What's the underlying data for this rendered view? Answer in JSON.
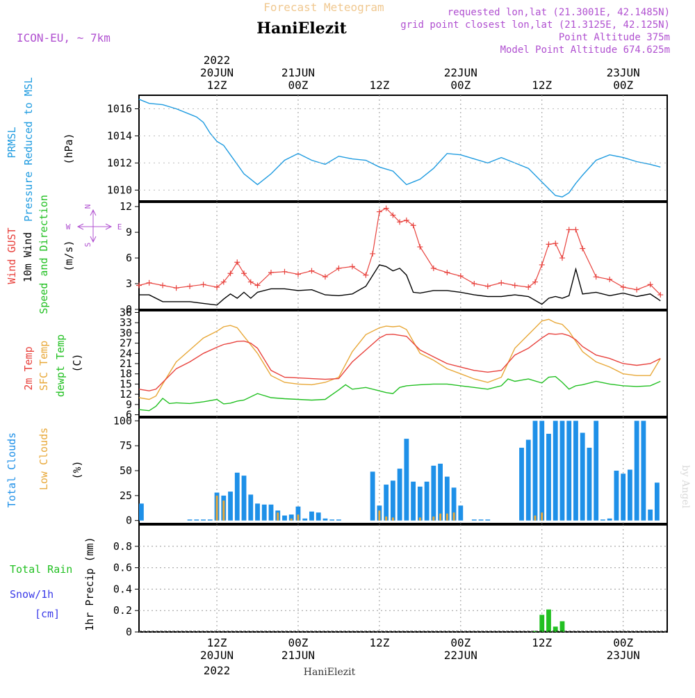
{
  "header": {
    "product": "Forecast Meteogram",
    "station": "HaniElezit",
    "model": "ICON-EU, ~ 7km",
    "requested": "requested lon,lat (21.3001E, 42.1485N)",
    "closest": "grid point closest lon,lat (21.3125E, 42.125N)",
    "point_alt": "Point Altitude 375m",
    "model_alt": "Model Point Altitude 674.625m",
    "credit": "by Angel",
    "footer_station": "HaniElezit",
    "year": "2022"
  },
  "colors": {
    "pressure": "#1e9be0",
    "gust": "#e8413c",
    "wind": "#000000",
    "dir": "#22c022",
    "t2m": "#e8413c",
    "sfc": "#e8a838",
    "dewpt": "#22c022",
    "total_clouds": "#1e90e8",
    "low_clouds": "#e8a838",
    "rain": "#22c022",
    "snow": "#3a3ae8",
    "header_gold": "#f0c890",
    "header_purple": "#b050d0"
  },
  "time_axis": {
    "top_ticks": [
      {
        "hour": 12,
        "l1": "20JUN",
        "l2": "12Z"
      },
      {
        "hour": 24,
        "l1": "21JUN",
        "l2": "00Z"
      },
      {
        "hour": 36,
        "l1": "",
        "l2": "12Z"
      },
      {
        "hour": 48,
        "l1": "22JUN",
        "l2": "00Z"
      },
      {
        "hour": 60,
        "l1": "",
        "l2": "12Z"
      },
      {
        "hour": 72,
        "l1": "23JUN",
        "l2": "00Z"
      }
    ],
    "bottom_ticks": [
      {
        "hour": 12,
        "l1": "12Z",
        "l2": "20JUN"
      },
      {
        "hour": 24,
        "l1": "00Z",
        "l2": "21JUN"
      },
      {
        "hour": 36,
        "l1": "12Z",
        "l2": ""
      },
      {
        "hour": 48,
        "l1": "00Z",
        "l2": "22JUN"
      },
      {
        "hour": 60,
        "l1": "12Z",
        "l2": ""
      },
      {
        "hour": 72,
        "l1": "00Z",
        "l2": "23JUN"
      }
    ]
  },
  "panels": {
    "pressure": {
      "label1": "PRMSL",
      "label2": "Pressure Reduced to MSL",
      "unit": "(hPa)",
      "ticks": [
        1010,
        1012,
        1014,
        1016
      ]
    },
    "wind": {
      "label_gust": "Wind GUST",
      "label_wind": "10m Wind",
      "label_dir": "Speed and Direction",
      "unit": "(m/s)",
      "ticks": [
        0,
        3,
        6,
        9,
        12
      ],
      "compass": {
        "n": "N",
        "s": "S",
        "w": "W",
        "e": "E"
      }
    },
    "temp": {
      "label_t2m": "2m Temp",
      "label_sfc": "SFC Temp",
      "label_dew": "dewpt Temp",
      "unit": "(C)",
      "ticks": [
        6,
        9,
        12,
        15,
        18,
        21,
        24,
        27,
        30,
        33,
        36
      ]
    },
    "clouds": {
      "label_total": "Total Clouds",
      "label_low": "Low Clouds",
      "unit": "(%)",
      "ticks": [
        0,
        25,
        50,
        75,
        100
      ]
    },
    "precip": {
      "label_rain": "Total Rain",
      "label_snow": "Snow/1h",
      "label_cm": "[cm]",
      "label_axis": "1hr Precip (mm)",
      "ticks": [
        "0",
        "0.2",
        "0.4",
        "0.6",
        "0.8"
      ]
    }
  },
  "chart_data": [
    {
      "type": "line",
      "title": "PRMSL",
      "ylabel": "(hPa)",
      "ylim": [
        1009.2,
        1017.0
      ],
      "x_unit": "hours since 20JUN 00Z",
      "series": [
        {
          "name": "PRMSL",
          "x": [
            0.5,
            2,
            4,
            6,
            8,
            9,
            10,
            11,
            12,
            13,
            14,
            15,
            16,
            17,
            18,
            20,
            22,
            24,
            26,
            28,
            30,
            32,
            34,
            36,
            38,
            39,
            40,
            41,
            42,
            44,
            46,
            48,
            50,
            52,
            54,
            56,
            58,
            60,
            61,
            62,
            63,
            64,
            65,
            66,
            68,
            70,
            72,
            74,
            76,
            77.5
          ],
          "values": [
            1016.7,
            1016.4,
            1016.3,
            1016.0,
            1015.6,
            1015.4,
            1015.0,
            1014.2,
            1013.6,
            1013.3,
            1012.6,
            1011.9,
            1011.2,
            1010.8,
            1010.4,
            1011.2,
            1012.2,
            1012.7,
            1012.2,
            1011.9,
            1012.5,
            1012.3,
            1012.2,
            1011.7,
            1011.4,
            1010.9,
            1010.4,
            1010.6,
            1010.8,
            1011.6,
            1012.7,
            1012.6,
            1012.3,
            1012.0,
            1012.4,
            1012.0,
            1011.6,
            1010.6,
            1010.1,
            1009.6,
            1009.5,
            1009.8,
            1010.5,
            1011.1,
            1012.2,
            1012.6,
            1012.4,
            1012.1,
            1011.9,
            1011.7
          ]
        }
      ]
    },
    {
      "type": "line",
      "title": "Wind",
      "ylabel": "(m/s)",
      "ylim": [
        0,
        12.5
      ],
      "series": [
        {
          "name": "Wind GUST",
          "x": [
            0.5,
            2,
            4,
            6,
            8,
            10,
            12,
            13,
            14,
            15,
            16,
            17,
            18,
            20,
            22,
            24,
            26,
            28,
            30,
            32,
            34,
            35,
            36,
            37,
            38,
            39,
            40,
            41,
            42,
            44,
            46,
            48,
            50,
            52,
            54,
            56,
            58,
            59,
            60,
            61,
            62,
            63,
            64,
            65,
            66,
            68,
            70,
            72,
            74,
            76,
            77.5
          ],
          "values": [
            2.8,
            3.1,
            2.8,
            2.5,
            2.7,
            2.9,
            2.6,
            3.2,
            4.2,
            5.5,
            4.2,
            3.2,
            2.8,
            4.3,
            4.4,
            4.1,
            4.5,
            3.8,
            4.8,
            5.0,
            4.0,
            6.5,
            11.4,
            11.8,
            11.0,
            10.2,
            10.4,
            9.8,
            7.3,
            4.8,
            4.3,
            3.9,
            3.0,
            2.7,
            3.1,
            2.8,
            2.6,
            3.2,
            5.2,
            7.6,
            7.7,
            6.0,
            9.3,
            9.3,
            7.1,
            3.8,
            3.5,
            2.6,
            2.3,
            2.9,
            1.7
          ]
        },
        {
          "name": "10m Wind",
          "x": [
            0.5,
            2,
            4,
            6,
            8,
            10,
            12,
            13,
            14,
            15,
            16,
            17,
            18,
            20,
            22,
            24,
            26,
            28,
            30,
            32,
            34,
            36,
            37,
            38,
            39,
            40,
            41,
            42,
            44,
            46,
            48,
            50,
            52,
            54,
            56,
            58,
            60,
            61,
            62,
            63,
            64,
            65,
            66,
            68,
            70,
            72,
            74,
            76,
            77.5
          ],
          "values": [
            1.7,
            1.7,
            0.9,
            0.9,
            0.9,
            0.7,
            0.5,
            1.2,
            1.8,
            1.3,
            2.0,
            1.3,
            2.0,
            2.4,
            2.4,
            2.2,
            2.3,
            1.7,
            1.6,
            1.8,
            2.7,
            5.2,
            5.0,
            4.5,
            4.8,
            4.0,
            2.0,
            1.9,
            2.2,
            2.2,
            2.0,
            1.7,
            1.5,
            1.5,
            1.7,
            1.5,
            0.6,
            1.3,
            1.5,
            1.3,
            1.6,
            4.7,
            1.8,
            2.0,
            1.6,
            1.9,
            1.5,
            1.8,
            1.0
          ]
        }
      ]
    },
    {
      "type": "line",
      "title": "Temperature",
      "ylabel": "(C)",
      "ylim": [
        5.5,
        36.5
      ],
      "series": [
        {
          "name": "2m Temp",
          "x": [
            0.5,
            2,
            3,
            4,
            6,
            8,
            10,
            12,
            13,
            14,
            15,
            16,
            17,
            18,
            20,
            22,
            24,
            26,
            28,
            30,
            32,
            34,
            36,
            37,
            38,
            39,
            40,
            41,
            42,
            44,
            46,
            48,
            50,
            52,
            54,
            56,
            58,
            60,
            61,
            62,
            63,
            64,
            65,
            66,
            68,
            70,
            72,
            74,
            76,
            77.5
          ],
          "values": [
            13.5,
            13.0,
            13.5,
            15.5,
            19.5,
            21.5,
            24.0,
            25.8,
            26.6,
            27.0,
            27.5,
            27.6,
            27.0,
            25.5,
            19.0,
            17.0,
            16.8,
            16.6,
            16.4,
            16.6,
            21.5,
            25.0,
            28.5,
            29.5,
            29.6,
            29.3,
            29.0,
            27.0,
            25.0,
            23.0,
            21.0,
            20.0,
            19.0,
            18.5,
            19.0,
            23.5,
            25.5,
            28.5,
            29.8,
            29.6,
            29.8,
            29.2,
            28.0,
            26.0,
            23.5,
            22.5,
            21.0,
            20.5,
            21.0,
            22.5
          ]
        },
        {
          "name": "SFC Temp",
          "x": [
            0.5,
            2,
            3,
            4,
            6,
            8,
            10,
            12,
            13,
            14,
            15,
            16,
            17,
            18,
            20,
            22,
            24,
            26,
            28,
            30,
            32,
            34,
            36,
            37,
            38,
            39,
            40,
            41,
            42,
            44,
            46,
            48,
            50,
            52,
            54,
            56,
            58,
            60,
            61,
            62,
            63,
            64,
            65,
            66,
            68,
            70,
            72,
            74,
            76,
            77.5
          ],
          "values": [
            11.0,
            10.5,
            11.5,
            15.0,
            21.5,
            25.0,
            28.5,
            30.5,
            31.8,
            32.2,
            31.5,
            29.0,
            26.5,
            24.0,
            17.5,
            15.5,
            15.0,
            14.8,
            15.5,
            17.0,
            24.5,
            29.5,
            31.5,
            32.0,
            31.8,
            32.0,
            31.0,
            27.5,
            24.0,
            22.0,
            19.5,
            18.0,
            16.5,
            15.5,
            17.0,
            25.5,
            29.5,
            33.5,
            34.0,
            33.0,
            32.5,
            30.5,
            27.5,
            24.5,
            21.5,
            20.0,
            18.0,
            17.5,
            17.5,
            22.5
          ]
        },
        {
          "name": "dewpt Temp",
          "x": [
            0.5,
            2,
            3,
            4,
            5,
            6,
            8,
            10,
            12,
            13,
            14,
            15,
            16,
            18,
            20,
            22,
            24,
            26,
            28,
            30,
            31,
            32,
            34,
            36,
            37,
            38,
            39,
            40,
            42,
            44,
            46,
            48,
            50,
            52,
            54,
            55,
            56,
            58,
            60,
            61,
            62,
            63,
            64,
            65,
            66,
            68,
            70,
            72,
            74,
            76,
            77.5
          ],
          "values": [
            7.5,
            7.2,
            8.5,
            10.8,
            9.3,
            9.5,
            9.3,
            9.8,
            10.5,
            9.2,
            9.4,
            10.0,
            10.3,
            12.2,
            11.0,
            10.7,
            10.5,
            10.3,
            10.5,
            13.3,
            14.8,
            13.5,
            14.0,
            13.0,
            12.5,
            12.2,
            14.0,
            14.5,
            14.8,
            15.0,
            15.0,
            14.5,
            14.0,
            13.5,
            14.5,
            16.5,
            15.8,
            16.5,
            15.3,
            17.0,
            17.2,
            15.5,
            13.5,
            14.5,
            14.8,
            15.8,
            15.0,
            14.5,
            14.3,
            14.5,
            15.8
          ]
        }
      ]
    },
    {
      "type": "bar",
      "title": "Clouds",
      "ylabel": "(%)",
      "ylim": [
        -3,
        103
      ],
      "x": [
        0,
        1,
        2,
        3,
        4,
        5,
        6,
        7,
        8,
        9,
        10,
        11,
        12,
        13,
        14,
        15,
        16,
        17,
        18,
        19,
        20,
        21,
        22,
        23,
        24,
        25,
        26,
        27,
        28,
        29,
        30,
        31,
        32,
        33,
        34,
        35,
        36,
        37,
        38,
        39,
        40,
        41,
        42,
        43,
        44,
        45,
        46,
        47,
        48,
        49,
        50,
        51,
        52,
        53,
        54,
        55,
        56,
        57,
        58,
        59,
        60,
        61,
        62,
        63,
        64,
        65,
        66,
        67,
        68,
        69,
        70,
        71,
        72,
        73,
        74,
        75,
        76,
        77
      ],
      "series": [
        {
          "name": "Total Clouds",
          "values": [
            17,
            0,
            0,
            0,
            0,
            0,
            0,
            0,
            1,
            1,
            1,
            1,
            28,
            25,
            29,
            48,
            45,
            26,
            17,
            16,
            16,
            10,
            5,
            6,
            14,
            2,
            9,
            8,
            2,
            1,
            1,
            0,
            0,
            0,
            0,
            49,
            15,
            36,
            40,
            52,
            82,
            39,
            34,
            39,
            55,
            57,
            44,
            33,
            15,
            0,
            1,
            1,
            1,
            0,
            0,
            0,
            0,
            73,
            81,
            100,
            100,
            87,
            100,
            100,
            100,
            100,
            88,
            73,
            100,
            1,
            2,
            50,
            47,
            51,
            100,
            100,
            11,
            38
          ]
        },
        {
          "name": "Low Clouds",
          "values": [
            0,
            0,
            0,
            0,
            0,
            0,
            0,
            0,
            0,
            0,
            0,
            0,
            25,
            20,
            0,
            0,
            0,
            0,
            0,
            0,
            0,
            8,
            0,
            2,
            6,
            0,
            0,
            0,
            0,
            0,
            0,
            0,
            0,
            0,
            0,
            0,
            10,
            4,
            3,
            0,
            0,
            0,
            3,
            0,
            4,
            7,
            7,
            8,
            0,
            0,
            0,
            0,
            0,
            0,
            0,
            0,
            0,
            0,
            0,
            5,
            8,
            0,
            0,
            0,
            0,
            0,
            0,
            0,
            0,
            0,
            0,
            0,
            0,
            0,
            0,
            0,
            0,
            0
          ]
        }
      ]
    },
    {
      "type": "bar",
      "title": "1hr Precip",
      "ylabel": "1hr Precip (mm)",
      "ylim": [
        0,
        1.0
      ],
      "x": [
        59,
        60,
        61,
        62,
        63,
        64
      ],
      "series": [
        {
          "name": "Total Rain",
          "values": [
            0.01,
            0.16,
            0.21,
            0.05,
            0.1,
            0.0
          ]
        }
      ]
    }
  ]
}
